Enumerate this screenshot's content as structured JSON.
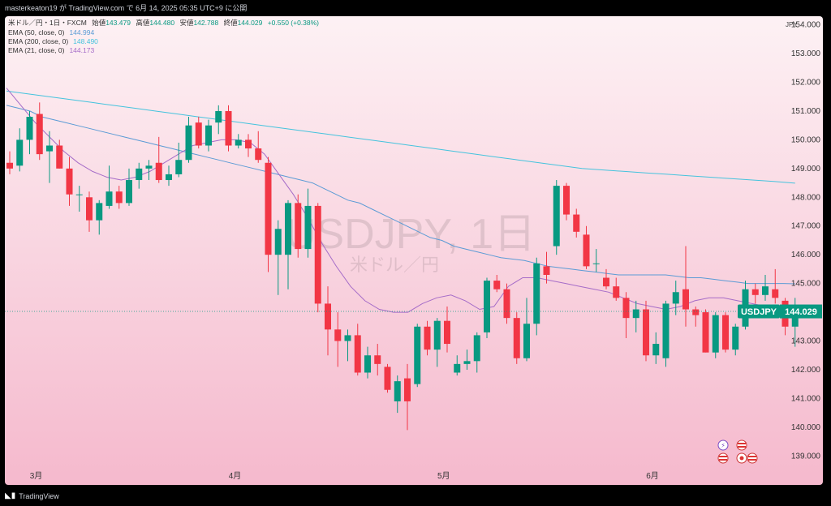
{
  "header": {
    "publisher_line": "masterkeaton19 が TradingView.com で 6月 14, 2025 05:35 UTC+9 に公開"
  },
  "legend": {
    "symbol_line": "米ドル／円・1日・FXCM",
    "open_label": "始値",
    "open_value": "143.479",
    "high_label": "高値",
    "high_value": "144.480",
    "low_label": "安値",
    "low_value": "142.788",
    "close_label": "終値",
    "close_value": "144.029",
    "change": "+0.550 (+0.38%)",
    "ema50_label": "EMA (50, close, 0)",
    "ema50_value": "144.994",
    "ema200_label": "EMA (200, close, 0)",
    "ema200_value": "148.490",
    "ema21_label": "EMA (21, close, 0)",
    "ema21_value": "144.173"
  },
  "watermark": {
    "ticker": "USDJPY, 1日",
    "name": "米ドル／円"
  },
  "price_tag": {
    "symbol": "USDJPY",
    "value": "144.029"
  },
  "currency_label": "JPY",
  "footer": {
    "brand": "TradingView"
  },
  "colors": {
    "up": "#089981",
    "down": "#f23645",
    "ema50": "#5b9bd5",
    "ema200": "#45c3dd",
    "ema21": "#a56cc8",
    "background_top": "#fdf1f4",
    "background_bottom": "#f5b9cd"
  },
  "chart_data": {
    "type": "candlestick",
    "title": "",
    "ylim": [
      138.5,
      154.3
    ],
    "y_ticks": [
      "139.000",
      "140.000",
      "141.000",
      "142.000",
      "143.000",
      "144.000",
      "145.000",
      "146.000",
      "147.000",
      "148.000",
      "149.000",
      "150.000",
      "151.000",
      "152.000",
      "153.000",
      "154.000"
    ],
    "x_ticks": [
      {
        "label": "3月",
        "index": 2
      },
      {
        "label": "4月",
        "index": 22
      },
      {
        "label": "5月",
        "index": 43
      },
      {
        "label": "6月",
        "index": 64
      }
    ],
    "current_price": 144.029,
    "candles": [
      {
        "o": 149.2,
        "h": 149.6,
        "l": 148.8,
        "c": 149.0
      },
      {
        "o": 149.1,
        "h": 150.4,
        "l": 148.9,
        "c": 150.0
      },
      {
        "o": 150.0,
        "h": 151.0,
        "l": 149.5,
        "c": 150.8
      },
      {
        "o": 150.9,
        "h": 151.3,
        "l": 149.3,
        "c": 149.5
      },
      {
        "o": 149.6,
        "h": 150.3,
        "l": 148.5,
        "c": 149.8
      },
      {
        "o": 149.8,
        "h": 150.0,
        "l": 149.0,
        "c": 149.0
      },
      {
        "o": 149.0,
        "h": 149.4,
        "l": 147.7,
        "c": 148.1
      },
      {
        "o": 148.1,
        "h": 148.4,
        "l": 147.5,
        "c": 148.1
      },
      {
        "o": 148.0,
        "h": 148.2,
        "l": 146.8,
        "c": 147.2
      },
      {
        "o": 147.2,
        "h": 147.9,
        "l": 146.7,
        "c": 147.8
      },
      {
        "o": 147.7,
        "h": 149.1,
        "l": 147.6,
        "c": 148.2
      },
      {
        "o": 148.2,
        "h": 148.4,
        "l": 147.6,
        "c": 147.8
      },
      {
        "o": 147.8,
        "h": 149.0,
        "l": 147.7,
        "c": 148.6
      },
      {
        "o": 148.6,
        "h": 149.2,
        "l": 148.3,
        "c": 149.0
      },
      {
        "o": 149.0,
        "h": 149.3,
        "l": 148.6,
        "c": 149.1
      },
      {
        "o": 149.2,
        "h": 150.1,
        "l": 148.5,
        "c": 148.6
      },
      {
        "o": 148.6,
        "h": 149.1,
        "l": 148.4,
        "c": 148.8
      },
      {
        "o": 148.8,
        "h": 149.9,
        "l": 148.7,
        "c": 149.3
      },
      {
        "o": 149.3,
        "h": 150.8,
        "l": 149.2,
        "c": 150.5
      },
      {
        "o": 150.6,
        "h": 150.8,
        "l": 149.7,
        "c": 149.8
      },
      {
        "o": 149.8,
        "h": 150.7,
        "l": 149.6,
        "c": 150.5
      },
      {
        "o": 150.6,
        "h": 151.2,
        "l": 150.2,
        "c": 151.0
      },
      {
        "o": 151.0,
        "h": 151.2,
        "l": 149.6,
        "c": 149.8
      },
      {
        "o": 149.8,
        "h": 150.2,
        "l": 149.7,
        "c": 150.0
      },
      {
        "o": 150.0,
        "h": 150.2,
        "l": 149.4,
        "c": 149.7
      },
      {
        "o": 149.7,
        "h": 150.3,
        "l": 149.2,
        "c": 149.3
      },
      {
        "o": 149.2,
        "h": 149.4,
        "l": 145.4,
        "c": 146.0
      },
      {
        "o": 146.0,
        "h": 147.2,
        "l": 144.6,
        "c": 146.9
      },
      {
        "o": 146.0,
        "h": 147.9,
        "l": 144.8,
        "c": 147.8
      },
      {
        "o": 147.8,
        "h": 148.1,
        "l": 145.9,
        "c": 146.2
      },
      {
        "o": 146.2,
        "h": 148.3,
        "l": 145.9,
        "c": 147.7
      },
      {
        "o": 147.7,
        "h": 147.8,
        "l": 144.0,
        "c": 144.3
      },
      {
        "o": 144.3,
        "h": 144.9,
        "l": 142.5,
        "c": 143.4
      },
      {
        "o": 143.4,
        "h": 144.0,
        "l": 142.1,
        "c": 143.0
      },
      {
        "o": 143.0,
        "h": 143.4,
        "l": 142.3,
        "c": 143.2
      },
      {
        "o": 143.2,
        "h": 143.6,
        "l": 141.8,
        "c": 141.9
      },
      {
        "o": 141.9,
        "h": 142.8,
        "l": 141.7,
        "c": 142.5
      },
      {
        "o": 142.5,
        "h": 142.9,
        "l": 141.8,
        "c": 142.2
      },
      {
        "o": 142.1,
        "h": 142.2,
        "l": 141.2,
        "c": 141.3
      },
      {
        "o": 140.9,
        "h": 141.8,
        "l": 140.5,
        "c": 141.6
      },
      {
        "o": 141.7,
        "h": 142.2,
        "l": 139.9,
        "c": 140.9
      },
      {
        "o": 141.5,
        "h": 143.6,
        "l": 141.4,
        "c": 143.5
      },
      {
        "o": 143.5,
        "h": 143.7,
        "l": 142.5,
        "c": 142.7
      },
      {
        "o": 142.7,
        "h": 143.8,
        "l": 142.1,
        "c": 143.7
      },
      {
        "o": 143.7,
        "h": 144.2,
        "l": 142.6,
        "c": 142.9
      },
      {
        "o": 141.9,
        "h": 142.5,
        "l": 141.8,
        "c": 142.2
      },
      {
        "o": 142.2,
        "h": 142.7,
        "l": 142.0,
        "c": 142.3
      },
      {
        "o": 142.3,
        "h": 143.3,
        "l": 141.9,
        "c": 143.2
      },
      {
        "o": 143.3,
        "h": 145.2,
        "l": 143.1,
        "c": 145.1
      },
      {
        "o": 145.1,
        "h": 145.3,
        "l": 144.7,
        "c": 144.8
      },
      {
        "o": 144.8,
        "h": 145.0,
        "l": 143.6,
        "c": 143.8
      },
      {
        "o": 143.8,
        "h": 144.0,
        "l": 142.2,
        "c": 142.4
      },
      {
        "o": 142.4,
        "h": 144.5,
        "l": 142.3,
        "c": 143.6
      },
      {
        "o": 143.6,
        "h": 145.9,
        "l": 143.2,
        "c": 145.7
      },
      {
        "o": 145.6,
        "h": 146.1,
        "l": 145.0,
        "c": 145.3
      },
      {
        "o": 146.3,
        "h": 148.6,
        "l": 146.0,
        "c": 148.4
      },
      {
        "o": 148.4,
        "h": 148.5,
        "l": 147.2,
        "c": 147.4
      },
      {
        "o": 147.4,
        "h": 147.6,
        "l": 146.6,
        "c": 146.8
      },
      {
        "o": 146.7,
        "h": 147.0,
        "l": 145.5,
        "c": 145.6
      },
      {
        "o": 145.7,
        "h": 146.2,
        "l": 145.4,
        "c": 145.7
      },
      {
        "o": 145.2,
        "h": 145.5,
        "l": 144.8,
        "c": 144.9
      },
      {
        "o": 144.9,
        "h": 145.2,
        "l": 144.4,
        "c": 144.5
      },
      {
        "o": 144.5,
        "h": 144.7,
        "l": 143.1,
        "c": 143.8
      },
      {
        "o": 143.8,
        "h": 144.4,
        "l": 143.3,
        "c": 144.1
      },
      {
        "o": 144.1,
        "h": 144.4,
        "l": 142.3,
        "c": 142.5
      },
      {
        "o": 142.5,
        "h": 143.3,
        "l": 142.2,
        "c": 142.9
      },
      {
        "o": 142.4,
        "h": 144.4,
        "l": 142.1,
        "c": 144.3
      },
      {
        "o": 144.3,
        "h": 145.1,
        "l": 143.9,
        "c": 144.7
      },
      {
        "o": 144.8,
        "h": 146.3,
        "l": 143.5,
        "c": 144.1
      },
      {
        "o": 144.1,
        "h": 144.2,
        "l": 143.5,
        "c": 143.9
      },
      {
        "o": 144.0,
        "h": 144.1,
        "l": 142.6,
        "c": 142.6
      },
      {
        "o": 142.6,
        "h": 144.0,
        "l": 142.4,
        "c": 143.9
      },
      {
        "o": 143.9,
        "h": 144.0,
        "l": 142.6,
        "c": 142.7
      },
      {
        "o": 142.7,
        "h": 143.6,
        "l": 142.5,
        "c": 143.5
      },
      {
        "o": 143.5,
        "h": 145.1,
        "l": 143.4,
        "c": 144.8
      },
      {
        "o": 144.8,
        "h": 145.0,
        "l": 144.3,
        "c": 144.6
      },
      {
        "o": 144.6,
        "h": 145.3,
        "l": 144.4,
        "c": 144.9
      },
      {
        "o": 144.8,
        "h": 145.5,
        "l": 144.3,
        "c": 144.5
      },
      {
        "o": 144.4,
        "h": 144.5,
        "l": 143.2,
        "c": 143.5
      },
      {
        "o": 143.5,
        "h": 144.5,
        "l": 142.8,
        "c": 144.0
      }
    ],
    "series": [
      {
        "name": "EMA (50, close, 0)",
        "values": [
          151.2,
          151.1,
          151.0,
          150.8,
          150.7,
          150.6,
          150.5,
          150.4,
          150.3,
          150.2,
          150.1,
          150.0,
          149.9,
          149.8,
          149.7,
          149.6,
          149.5,
          149.4,
          149.3,
          149.2,
          149.1,
          149.0,
          148.9,
          148.8,
          148.7,
          148.6,
          148.5,
          148.3,
          148.1,
          147.9,
          147.8,
          147.6,
          147.4,
          147.2,
          147.0,
          146.8,
          146.6,
          146.5,
          146.3,
          146.2,
          146.1,
          146.0,
          145.9,
          145.85,
          145.8,
          145.7,
          145.6,
          145.55,
          145.5,
          145.45,
          145.4,
          145.35,
          145.3,
          145.3,
          145.3,
          145.3,
          145.3,
          145.25,
          145.2,
          145.2,
          145.15,
          145.1,
          145.05,
          145.0,
          145.0,
          145.0,
          145.0,
          144.99
        ]
      },
      {
        "name": "EMA (200, close, 0)",
        "values": [
          151.7,
          151.6,
          151.5,
          151.4,
          151.3,
          151.2,
          151.1,
          151.0,
          150.9,
          150.8,
          150.7,
          150.6,
          150.5,
          150.4,
          150.3,
          150.2,
          150.1,
          150.0,
          149.9,
          149.8,
          149.7,
          149.6,
          149.5,
          149.4,
          149.3,
          149.2,
          149.1,
          149.0,
          148.95,
          148.9,
          148.85,
          148.8,
          148.75,
          148.7,
          148.65,
          148.6,
          148.55,
          148.49
        ]
      },
      {
        "name": "EMA (21, close, 0)",
        "values": [
          151.8,
          151.2,
          150.6,
          150.1,
          149.6,
          149.2,
          148.9,
          148.7,
          148.6,
          148.7,
          148.9,
          149.2,
          149.5,
          149.8,
          149.9,
          150.0,
          150.0,
          149.9,
          149.5,
          148.8,
          148.1,
          147.3,
          146.4,
          145.6,
          144.9,
          144.4,
          144.1,
          144.0,
          144.0,
          144.3,
          144.5,
          144.6,
          144.4,
          144.1,
          144.2,
          144.9,
          145.2,
          145.2,
          145.1,
          145.0,
          144.9,
          144.8,
          144.7,
          144.5,
          144.3,
          144.2,
          144.1,
          144.2,
          144.4,
          144.5,
          144.5,
          144.4,
          144.3,
          144.2,
          144.2,
          144.17
        ]
      }
    ]
  }
}
